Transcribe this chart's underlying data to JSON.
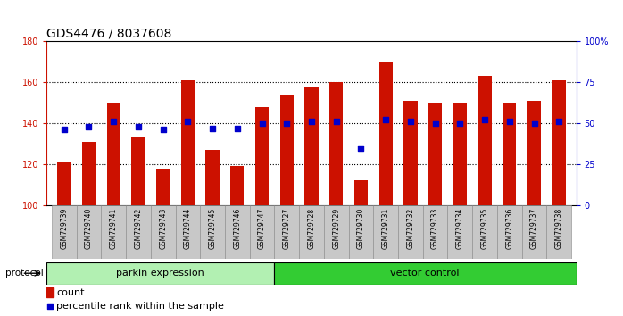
{
  "title": "GDS4476 / 8037608",
  "samples": [
    "GSM729739",
    "GSM729740",
    "GSM729741",
    "GSM729742",
    "GSM729743",
    "GSM729744",
    "GSM729745",
    "GSM729746",
    "GSM729747",
    "GSM729727",
    "GSM729728",
    "GSM729729",
    "GSM729730",
    "GSM729731",
    "GSM729732",
    "GSM729733",
    "GSM729734",
    "GSM729735",
    "GSM729736",
    "GSM729737",
    "GSM729738"
  ],
  "count_values": [
    121,
    131,
    150,
    133,
    118,
    161,
    127,
    119,
    148,
    154,
    158,
    160,
    112,
    170,
    151,
    150,
    150,
    163,
    150,
    151,
    161
  ],
  "percentile_values": [
    46,
    48,
    51,
    48,
    46,
    51,
    47,
    47,
    50,
    50,
    51,
    51,
    35,
    52,
    51,
    50,
    50,
    52,
    51,
    50,
    51
  ],
  "groups": [
    {
      "label": "parkin expression",
      "start": 0,
      "end": 9,
      "color": "#b2f0b2"
    },
    {
      "label": "vector control",
      "start": 9,
      "end": 21,
      "color": "#33cc33"
    }
  ],
  "protocol_label": "protocol",
  "ylim_left": [
    100,
    180
  ],
  "ylim_right": [
    0,
    100
  ],
  "yticks_left": [
    100,
    120,
    140,
    160,
    180
  ],
  "yticks_right": [
    0,
    25,
    50,
    75,
    100
  ],
  "bar_color": "#CC1100",
  "dot_color": "#0000CC",
  "bg_color": "#C8C8C8",
  "legend_count_label": "count",
  "legend_pct_label": "percentile rank within the sample",
  "left_axis_color": "#CC1100",
  "right_axis_color": "#0000CC",
  "grid_linestyle": "dotted",
  "title_fontsize": 10,
  "tick_fontsize": 7,
  "legend_fontsize": 8,
  "bar_width": 0.55,
  "dot_size": 18
}
